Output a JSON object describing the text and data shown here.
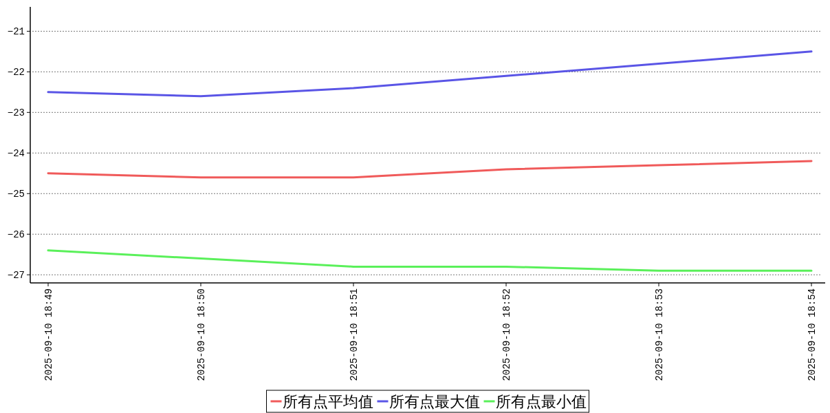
{
  "chart_data": {
    "type": "line",
    "categories": [
      "2025-09-10 18:49",
      "2025-09-10 18:50",
      "2025-09-10 18:51",
      "2025-09-10 18:52",
      "2025-09-10 18:53",
      "2025-09-10 18:54"
    ],
    "series": [
      {
        "name": "所有点平均值",
        "color": "#f05a5a",
        "values": [
          -24.5,
          -24.6,
          -24.6,
          -24.4,
          -24.3,
          -24.2
        ]
      },
      {
        "name": "所有点最大值",
        "color": "#5a55e6",
        "values": [
          -22.5,
          -22.6,
          -22.4,
          -22.1,
          -21.8,
          -21.5
        ]
      },
      {
        "name": "所有点最小值",
        "color": "#5af05a",
        "values": [
          -26.4,
          -26.6,
          -26.8,
          -26.8,
          -26.9,
          -26.9
        ]
      }
    ],
    "ylim": [
      -27.2,
      -20.4
    ],
    "yticks": [
      {
        "value": -27,
        "label": "−27"
      },
      {
        "value": -26,
        "label": "−26"
      },
      {
        "value": -25,
        "label": "−25"
      },
      {
        "value": -24,
        "label": "−24"
      },
      {
        "value": -23,
        "label": "−23"
      },
      {
        "value": -22,
        "label": "−22"
      },
      {
        "value": -21,
        "label": "−21"
      }
    ],
    "grid": "y",
    "legend": "bottom",
    "line_style": "solid",
    "marker": "none"
  }
}
